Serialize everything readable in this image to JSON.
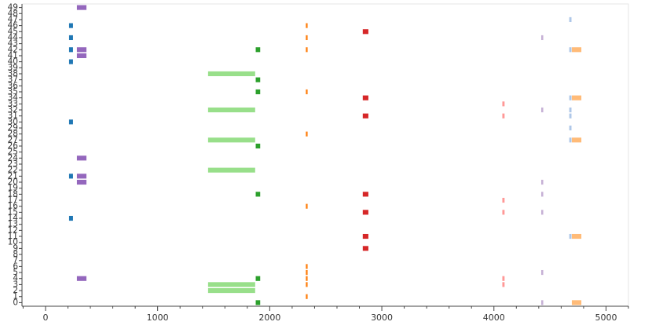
{
  "chart_data": {
    "type": "gantt",
    "xlim": [
      -210,
      5200
    ],
    "ylim": [
      -0.6,
      49.6
    ],
    "xticks": [
      0,
      1000,
      2000,
      3000,
      4000,
      5000
    ],
    "xminorticks": [
      -200,
      200,
      400,
      600,
      800,
      1200,
      1400,
      1600,
      1800,
      2200,
      2400,
      2600,
      2800,
      3200,
      3400,
      3600,
      3800,
      4200,
      4400,
      4600,
      4800,
      5200
    ],
    "yticks": [
      0,
      1,
      2,
      3,
      4,
      5,
      6,
      7,
      8,
      9,
      10,
      11,
      12,
      13,
      14,
      15,
      16,
      17,
      18,
      19,
      20,
      21,
      22,
      23,
      24,
      25,
      26,
      27,
      28,
      29,
      30,
      31,
      32,
      33,
      34,
      35,
      36,
      37,
      38,
      39,
      40,
      41,
      42,
      43,
      44,
      45,
      46,
      47,
      48,
      49
    ],
    "bar_height": 0.8,
    "series": [
      {
        "color": "#1f77b4",
        "start": 210,
        "end": 245,
        "rows": [
          46,
          44,
          42,
          40,
          30,
          21,
          14
        ]
      },
      {
        "color": "#9467bd",
        "start": 280,
        "end": 365,
        "rows": [
          49,
          42,
          41,
          24,
          21,
          20,
          4
        ]
      },
      {
        "color": "#98df8a",
        "start": 1450,
        "end": 1870,
        "rows": [
          38,
          32,
          27,
          22,
          3,
          2
        ]
      },
      {
        "color": "#2ca02c",
        "start": 1875,
        "end": 1915,
        "rows": [
          42,
          37,
          35,
          26,
          18,
          4,
          0
        ]
      },
      {
        "color": "#ff7f0e",
        "start": 2322,
        "end": 2338,
        "rows": [
          46,
          44,
          42,
          35,
          28,
          16,
          6,
          5,
          4,
          3,
          1
        ]
      },
      {
        "color": "#d62728",
        "start": 2830,
        "end": 2880,
        "rows": [
          45,
          34,
          31,
          18,
          15,
          11,
          9
        ]
      },
      {
        "color": "#ff9896",
        "start": 4075,
        "end": 4095,
        "rows": [
          33,
          31,
          17,
          15,
          4,
          3
        ]
      },
      {
        "color": "#c5b0d5",
        "start": 4422,
        "end": 4440,
        "rows": [
          44,
          32,
          20,
          18,
          15,
          5,
          0
        ]
      },
      {
        "color": "#aec7e8",
        "start": 4672,
        "end": 4692,
        "rows": [
          47,
          42,
          34,
          32,
          31,
          29,
          27,
          11
        ]
      },
      {
        "color": "#ffbb78",
        "start": 4695,
        "end": 4780,
        "rows": [
          42,
          34,
          27,
          11,
          0
        ]
      }
    ]
  }
}
